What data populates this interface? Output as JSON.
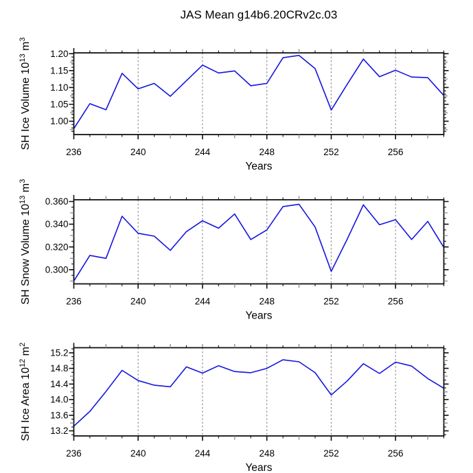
{
  "title": "JAS Mean g14b6.20CRv2c.03",
  "xlabel": "Years",
  "colors": {
    "line": "#1414e1",
    "axis": "#111111",
    "grid": "#8a8a8a",
    "text": "#000000",
    "background": "#ffffff"
  },
  "chart_data": [
    {
      "type": "line",
      "name": "sh-ice-volume",
      "ylabel": "SH Ice Volume 10^13 m^3",
      "ylabel_parts": [
        {
          "t": "SH Ice Volume 10"
        },
        {
          "t": "13",
          "sup": true
        },
        {
          "t": " m"
        },
        {
          "t": "3",
          "sup": true
        }
      ],
      "xlabel": "Years",
      "x": [
        236,
        237,
        238,
        239,
        240,
        241,
        242,
        243,
        244,
        245,
        246,
        247,
        248,
        249,
        250,
        251,
        252,
        253,
        254,
        255,
        256,
        257,
        258,
        259
      ],
      "values": [
        0.978,
        1.052,
        1.034,
        1.142,
        1.096,
        1.112,
        1.074,
        1.12,
        1.166,
        1.143,
        1.149,
        1.105,
        1.112,
        1.188,
        1.195,
        1.156,
        1.033,
        1.11,
        1.184,
        1.132,
        1.151,
        1.131,
        1.129,
        1.076
      ],
      "xlim": [
        236,
        259
      ],
      "ylim": [
        0.9605,
        1.2025
      ],
      "xtick_values": [
        236,
        240,
        244,
        248,
        252,
        256
      ],
      "xtick_labels": [
        "236",
        "240",
        "244",
        "248",
        "252",
        "256"
      ],
      "x_mid_ticks": [
        238,
        242,
        246,
        250,
        254,
        258
      ],
      "grid_x": [
        240,
        244,
        248,
        252,
        256
      ],
      "ytick_values": [
        1.0,
        1.05,
        1.1,
        1.15,
        1.2
      ],
      "ytick_labels": [
        "1.00",
        "1.05",
        "1.10",
        "1.15",
        "1.20"
      ],
      "y_major_step": 0.05,
      "y_minor_step": 0.01
    },
    {
      "type": "line",
      "name": "sh-snow-volume",
      "ylabel": "SH Snow Volume 10^13 m^3",
      "ylabel_parts": [
        {
          "t": "SH Snow Volume 10"
        },
        {
          "t": "13",
          "sup": true
        },
        {
          "t": " m"
        },
        {
          "t": "3",
          "sup": true
        }
      ],
      "xlabel": "Years",
      "x": [
        236,
        237,
        238,
        239,
        240,
        241,
        242,
        243,
        244,
        245,
        246,
        247,
        248,
        249,
        250,
        251,
        252,
        253,
        254,
        255,
        256,
        257,
        258,
        259
      ],
      "values": [
        0.29,
        0.3125,
        0.31,
        0.347,
        0.332,
        0.3295,
        0.317,
        0.3335,
        0.343,
        0.3365,
        0.349,
        0.3265,
        0.335,
        0.3555,
        0.3575,
        0.3375,
        0.2985,
        0.327,
        0.357,
        0.3395,
        0.344,
        0.3265,
        0.3425,
        0.3195
      ],
      "xlim": [
        236,
        259
      ],
      "ylim": [
        0.2875,
        0.3615
      ],
      "xtick_values": [
        236,
        240,
        244,
        248,
        252,
        256
      ],
      "xtick_labels": [
        "236",
        "240",
        "244",
        "248",
        "252",
        "256"
      ],
      "x_mid_ticks": [
        238,
        242,
        246,
        250,
        254,
        258
      ],
      "grid_x": [
        240,
        244,
        248,
        252,
        256
      ],
      "ytick_values": [
        0.3,
        0.32,
        0.34,
        0.36
      ],
      "ytick_labels": [
        "0.300",
        "0.320",
        "0.340",
        "0.360"
      ],
      "y_major_step": 0.02,
      "y_minor_step": 0.005
    },
    {
      "type": "line",
      "name": "sh-ice-area",
      "ylabel": "SH Ice Area 10^12 m^2",
      "ylabel_parts": [
        {
          "t": "SH Ice Area 10"
        },
        {
          "t": "12",
          "sup": true
        },
        {
          "t": " m"
        },
        {
          "t": "2",
          "sup": true
        }
      ],
      "xlabel": "Years",
      "x": [
        236,
        237,
        238,
        239,
        240,
        241,
        242,
        243,
        244,
        245,
        246,
        247,
        248,
        249,
        250,
        251,
        252,
        253,
        254,
        255,
        256,
        257,
        258,
        259
      ],
      "values": [
        13.32,
        13.7,
        14.21,
        14.75,
        14.49,
        14.37,
        14.33,
        14.84,
        14.68,
        14.87,
        14.72,
        14.69,
        14.8,
        15.02,
        14.97,
        14.69,
        14.12,
        14.48,
        14.92,
        14.67,
        14.96,
        14.86,
        14.54,
        14.29
      ],
      "xlim": [
        236,
        259
      ],
      "ylim": [
        13.07,
        15.33
      ],
      "xtick_values": [
        236,
        240,
        244,
        248,
        252,
        256
      ],
      "xtick_labels": [
        "236",
        "240",
        "244",
        "248",
        "252",
        "256"
      ],
      "x_mid_ticks": [
        238,
        242,
        246,
        250,
        254,
        258
      ],
      "grid_x": [
        240,
        244,
        248,
        252,
        256
      ],
      "ytick_values": [
        13.2,
        13.6,
        14.0,
        14.4,
        14.8,
        15.2
      ],
      "ytick_labels": [
        "13.2",
        "13.6",
        "14.0",
        "14.4",
        "14.8",
        "15.2"
      ],
      "y_major_step": 0.4,
      "y_minor_step": 0.1
    }
  ]
}
